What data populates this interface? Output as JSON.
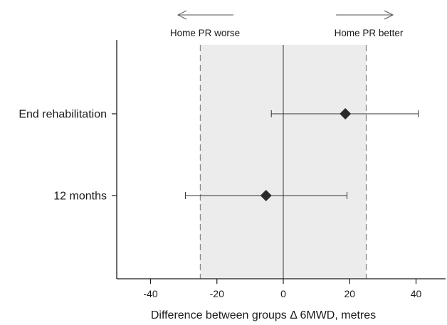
{
  "chart_data": {
    "type": "forest",
    "xlabel": "Difference between groups Δ 6MWD, metres",
    "xlim": [
      -50,
      50
    ],
    "xticks": [
      -40,
      -20,
      0,
      20,
      40
    ],
    "reference_line": 0,
    "equivalence_margin": [
      -25,
      25
    ],
    "direction_labels": {
      "left": "Home PR worse",
      "right": "Home PR better"
    },
    "series": [
      {
        "label": "End rehabilitation",
        "estimate": 18.7,
        "ci_low": -3.6,
        "ci_high": 40.7
      },
      {
        "label": "12 months",
        "estimate": -5.2,
        "ci_low": -29.5,
        "ci_high": 19.2
      }
    ],
    "colors": {
      "shade": "#ececec",
      "axis": "#1a1a1a",
      "marker": "#2b2b2b",
      "margin_line": "#8a8a8a"
    }
  }
}
